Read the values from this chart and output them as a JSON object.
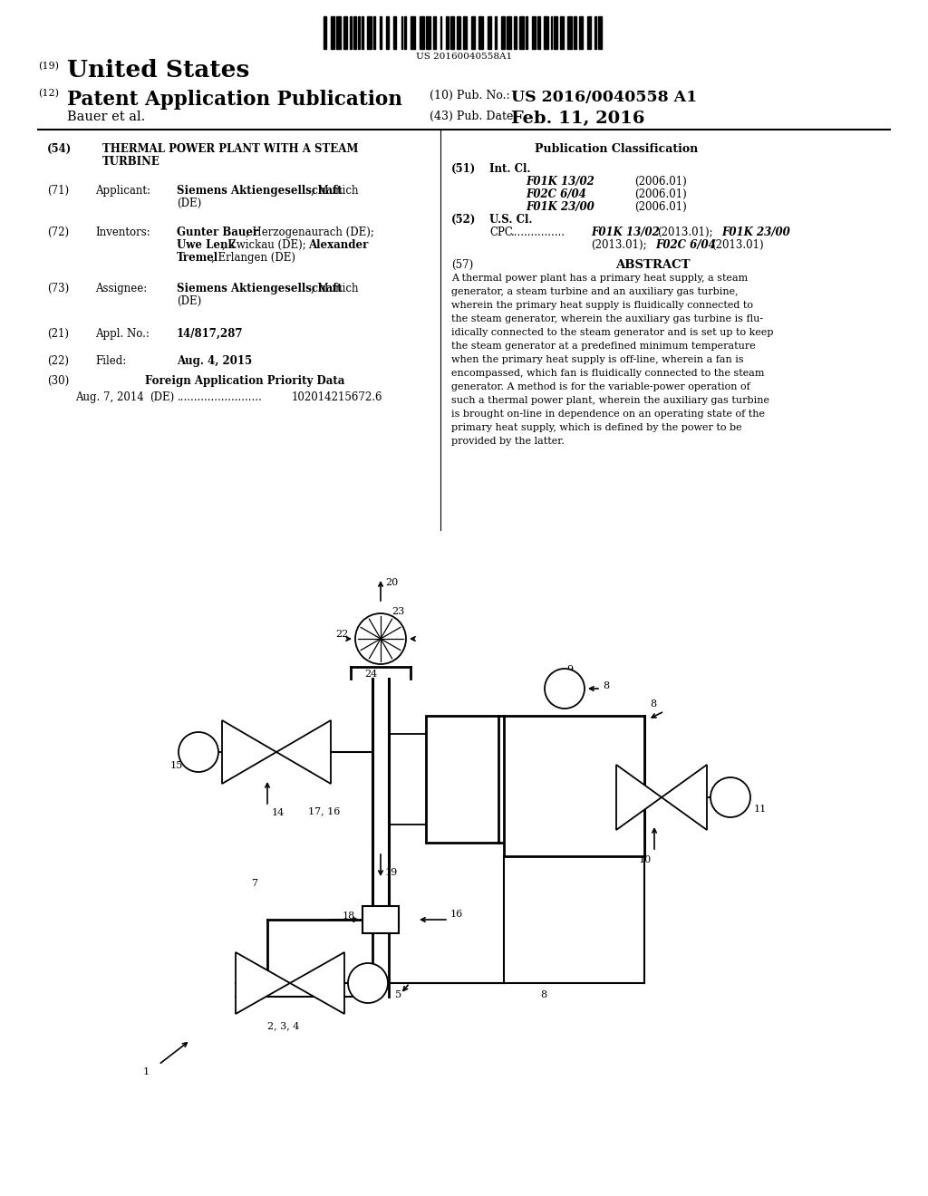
{
  "bg": "#ffffff",
  "barcode_num": "US 20160040558A1",
  "header_country": "United States",
  "header_pubtype": "Patent Application Publication",
  "header_author": "Bauer et al.",
  "header_pubno_label": "(10) Pub. No.:",
  "header_pubno_val": "US 2016/0040558 A1",
  "header_date_label": "(43) Pub. Date:",
  "header_date_val": "Feb. 11, 2016",
  "f54_line1": "THERMAL POWER PLANT WITH A STEAM",
  "f54_line2": "TURBINE",
  "f71_bold": "Siemens Aktiengesellschaft",
  "f71_rest": ", Munich",
  "f72_b1": "Gunter Bauer",
  "f72_r1": ", Herzogenaurach (DE);",
  "f72_b2": "Uwe Lenk",
  "f72_r2": ", Zwickau (DE);",
  "f72_b3": "Alexander",
  "f72_b4": "Tremel",
  "f72_r3": ", Erlangen (DE)",
  "f73_bold": "Siemens Aktiengesellschaft",
  "f73_rest": ", Munich",
  "f21_bold": "14/817,287",
  "f22_bold": "Aug. 4, 2015",
  "f30_bold": "Foreign Application Priority Data",
  "f30_date": "Aug. 7, 2014",
  "f30_country": "(DE)",
  "f30_dots": ".........................",
  "f30_num": "102014215672.6",
  "pub_class": "Publication Classification",
  "f51_entries": [
    [
      "F01K 13/02",
      "(2006.01)"
    ],
    [
      "F02C 6/04",
      "(2006.01)"
    ],
    [
      "F01K 23/00",
      "(2006.01)"
    ]
  ],
  "f52_cpc_b1": "F01K 13/02",
  "f52_cpc_b2": "F01K 23/00",
  "f52_cpc_b3": "F02C 6/04",
  "f57_title": "ABSTRACT",
  "abstract_lines": [
    "A thermal power plant has a primary heat supply, a steam",
    "generator, a steam turbine and an auxiliary gas turbine,",
    "wherein the primary heat supply is fluidically connected to",
    "the steam generator, wherein the auxiliary gas turbine is flu-",
    "idically connected to the steam generator and is set up to keep",
    "the steam generator at a predefined minimum temperature",
    "when the primary heat supply is off-line, wherein a fan is",
    "encompassed, which fan is fluidically connected to the steam",
    "generator. A method is for the variable-power operation of",
    "such a thermal power plant, wherein the auxiliary gas turbine",
    "is brought on-line in dependence on an operating state of the",
    "primary heat supply, which is defined by the power to be",
    "provided by the latter."
  ]
}
